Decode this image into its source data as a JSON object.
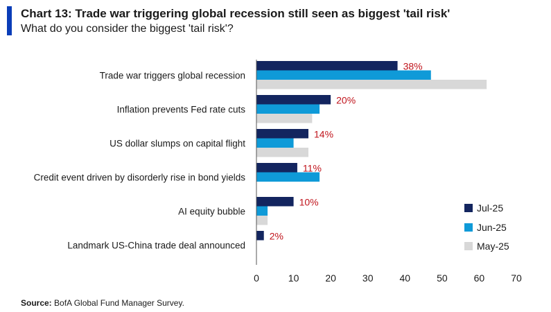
{
  "header": {
    "title": "Chart 13: Trade war triggering global recession still seen as biggest 'tail risk'",
    "subtitle": "What do you consider the biggest 'tail risk'?"
  },
  "footer": {
    "source_label": "Source:",
    "source_text": " BofA Global Fund Manager Survey."
  },
  "colors": {
    "accent": "#0a3db8",
    "jul": "#13255f",
    "jun": "#0f9ad8",
    "may": "#d8d8d8",
    "label_red": "#c0141c"
  },
  "chart_data": {
    "type": "bar",
    "orientation": "horizontal",
    "title": "",
    "xlabel": "",
    "ylabel": "",
    "xlim": [
      0,
      70
    ],
    "xticks": [
      "0",
      "10",
      "20",
      "30",
      "40",
      "50",
      "60",
      "70"
    ],
    "grid": false,
    "legend_position": "right",
    "categories": [
      "Trade war triggers global recession",
      "Inflation prevents Fed rate cuts",
      "US dollar slumps on capital flight",
      "Credit event driven by disorderly rise in bond yields",
      "AI equity bubble",
      "Landmark US-China trade deal announced"
    ],
    "series": [
      {
        "name": "Jul-25",
        "color": "#13255f",
        "values": [
          38,
          20,
          14,
          11,
          10,
          2
        ]
      },
      {
        "name": "Jun-25",
        "color": "#0f9ad8",
        "values": [
          47,
          17,
          10,
          17,
          3,
          0
        ]
      },
      {
        "name": "May-25",
        "color": "#d8d8d8",
        "values": [
          62,
          15,
          14,
          0,
          3,
          0
        ]
      }
    ],
    "data_labels": [
      "38%",
      "20%",
      "14%",
      "11%",
      "10%",
      "2%"
    ]
  }
}
